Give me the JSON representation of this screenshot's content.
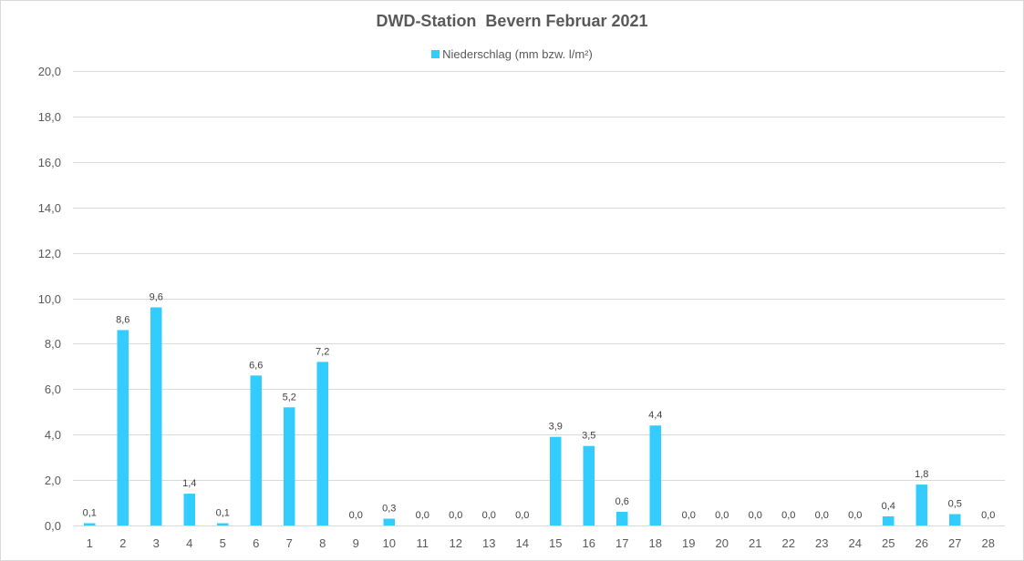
{
  "chart_data": {
    "type": "bar",
    "title": "DWD-Station  Bevern Februar 2021",
    "categories": [
      "1",
      "2",
      "3",
      "4",
      "5",
      "6",
      "7",
      "8",
      "9",
      "10",
      "11",
      "12",
      "13",
      "14",
      "15",
      "16",
      "17",
      "18",
      "19",
      "20",
      "21",
      "22",
      "23",
      "24",
      "25",
      "26",
      "27",
      "28"
    ],
    "series": [
      {
        "name": "Niederschlag (mm bzw. l/m²)",
        "values": [
          0.1,
          8.6,
          9.6,
          1.4,
          0.1,
          6.6,
          5.2,
          7.2,
          0.0,
          0.3,
          0.0,
          0.0,
          0.0,
          0.0,
          3.9,
          3.5,
          0.6,
          4.4,
          0.0,
          0.0,
          0.0,
          0.0,
          0.0,
          0.0,
          0.4,
          1.8,
          0.5,
          0.0
        ],
        "data_labels": [
          "0,1",
          "8,6",
          "9,6",
          "1,4",
          "0,1",
          "6,6",
          "5,2",
          "7,2",
          "0,0",
          "0,3",
          "0,0",
          "0,0",
          "0,0",
          "0,0",
          "3,9",
          "3,5",
          "0,6",
          "4,4",
          "0,0",
          "0,0",
          "0,0",
          "0,0",
          "0,0",
          "0,0",
          "0,4",
          "1,8",
          "0,5",
          "0,0"
        ]
      }
    ],
    "ylim": [
      0,
      20
    ],
    "yticks": [
      0,
      2,
      4,
      6,
      8,
      10,
      12,
      14,
      16,
      18,
      20
    ],
    "ytick_labels": [
      "0,0",
      "2,0",
      "4,0",
      "6,0",
      "8,0",
      "10,0",
      "12,0",
      "14,0",
      "16,0",
      "18,0",
      "20,0"
    ],
    "xlabel": "",
    "ylabel": "",
    "grid": true,
    "legend_position": "top",
    "colors": {
      "bar": "#33ccff",
      "grid": "#d9d9d9",
      "text": "#595959",
      "label": "#404040"
    }
  }
}
